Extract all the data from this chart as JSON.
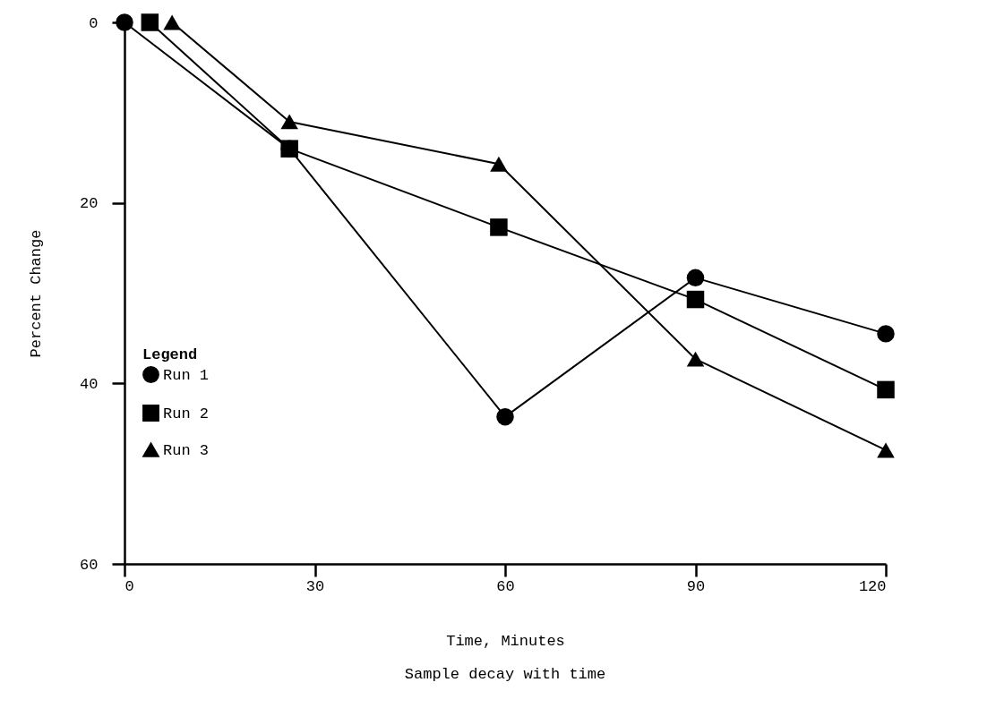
{
  "chart_data": {
    "type": "line",
    "title": "Sample decay with time",
    "xlabel": "Time, Minutes",
    "ylabel": "Percent Change",
    "legend_title": "Legend",
    "xlim": [
      0,
      120
    ],
    "ylim": [
      60,
      0
    ],
    "xticks": [
      0,
      30,
      60,
      90,
      120
    ],
    "yticks": [
      0,
      20,
      40,
      60
    ],
    "grid": false,
    "legend": "left",
    "series": [
      {
        "name": "Run 1",
        "color": "#000000",
        "marker": "circle",
        "x": [
          0,
          26,
          60,
          90,
          120
        ],
        "values": [
          0,
          14,
          43.7,
          28.3,
          34.5
        ]
      },
      {
        "name": "Run 2",
        "color": "#000000",
        "marker": "square",
        "x": [
          4,
          26,
          59,
          90,
          120
        ],
        "values": [
          0,
          14,
          22.7,
          30.7,
          40.7
        ]
      },
      {
        "name": "Run 3",
        "color": "#000000",
        "marker": "triangle",
        "x": [
          7.5,
          26,
          59,
          90,
          120
        ],
        "values": [
          0,
          11,
          15.7,
          37.3,
          47.4
        ]
      }
    ]
  }
}
